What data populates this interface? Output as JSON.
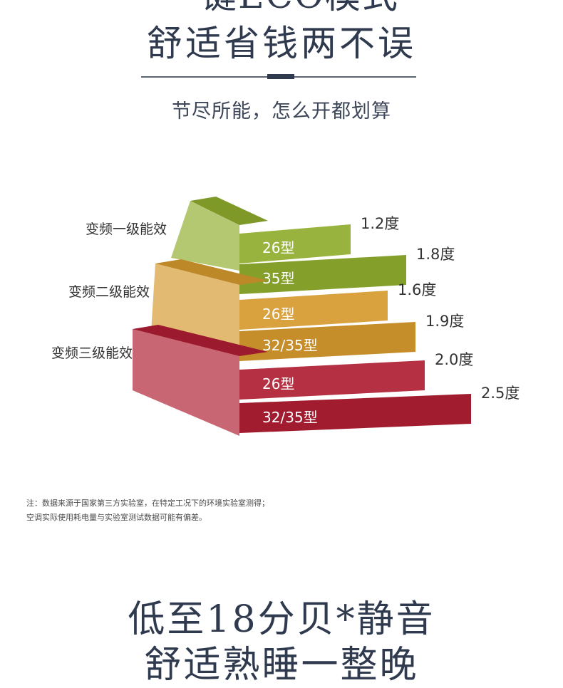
{
  "header": {
    "top_line": "一键ECO模式",
    "headline": "舒适省钱两不误",
    "subtitle": "节尽所能，怎么开都划算"
  },
  "chart_data": {
    "type": "bar",
    "title": "",
    "xlabel": "",
    "ylabel": "",
    "unit": "度",
    "groups": [
      {
        "name": "变频一级能效",
        "color": "#8fae2e",
        "bars": [
          {
            "label": "26型",
            "value": 1.2,
            "value_label": "1.2度"
          },
          {
            "label": "35型",
            "value": 1.8,
            "value_label": "1.8度"
          }
        ]
      },
      {
        "name": "变频二级能效",
        "color": "#d69a2e",
        "bars": [
          {
            "label": "26型",
            "value": 1.6,
            "value_label": "1.6度"
          },
          {
            "label": "32/35型",
            "value": 1.9,
            "value_label": "1.9度"
          }
        ]
      },
      {
        "name": "变频三级能效",
        "color": "#b01e33",
        "bars": [
          {
            "label": "26型",
            "value": 2.0,
            "value_label": "2.0度"
          },
          {
            "label": "32/35型",
            "value": 2.5,
            "value_label": "2.5度"
          }
        ]
      }
    ]
  },
  "notes": {
    "line1": "注：数据来源于国家第三方实验室，在特定工况下的环境实验室测得；",
    "line2": "空调实际使用耗电量与实验室测试数据可能有偏差。"
  },
  "section2": {
    "headline1": "低至18分贝*静音",
    "headline2": "舒适熟睡一整晚"
  }
}
